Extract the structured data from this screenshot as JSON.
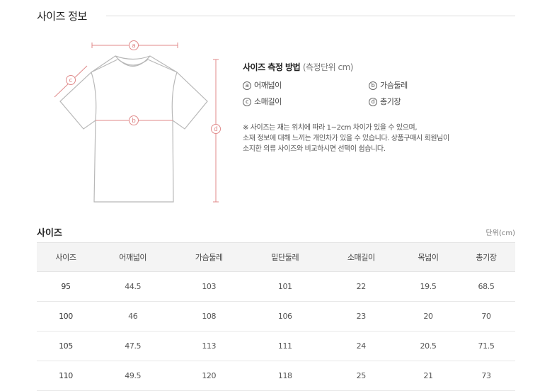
{
  "title": "사이즈 정보",
  "diagram": {
    "labels": [
      "a",
      "b",
      "c",
      "d"
    ],
    "accent": "#e08a8a",
    "outline": "#b8b8b8"
  },
  "method": {
    "title": "사이즈 측정 방법",
    "unit_note": "(측정단위 cm)",
    "items": [
      {
        "mark": "a",
        "label": "어깨넓이"
      },
      {
        "mark": "b",
        "label": "가슴둘레"
      },
      {
        "mark": "c",
        "label": "소매길이"
      },
      {
        "mark": "d",
        "label": "총기장"
      }
    ],
    "note": [
      "※ 사이즈는 재는 위치에 따라 1~2cm 차이가 있을 수 있으며,",
      "소재 정보에 대해 느끼는 개인차가 있을 수 있습니다. 상품구매시 회원님이",
      "소지한 의류 사이즈와 비교하시면 선택이 쉽습니다."
    ]
  },
  "size_table": {
    "title": "사이즈",
    "unit": "단위(cm)",
    "headers": [
      "사이즈",
      "어깨넓이",
      "가슴둘레",
      "밑단둘레",
      "소매길이",
      "목넓이",
      "총기장"
    ],
    "rows": [
      [
        "95",
        "44.5",
        "103",
        "101",
        "22",
        "19.5",
        "68.5"
      ],
      [
        "100",
        "46",
        "108",
        "106",
        "23",
        "20",
        "70"
      ],
      [
        "105",
        "47.5",
        "113",
        "111",
        "24",
        "20.5",
        "71.5"
      ],
      [
        "110",
        "49.5",
        "120",
        "118",
        "25",
        "21",
        "73"
      ]
    ]
  }
}
